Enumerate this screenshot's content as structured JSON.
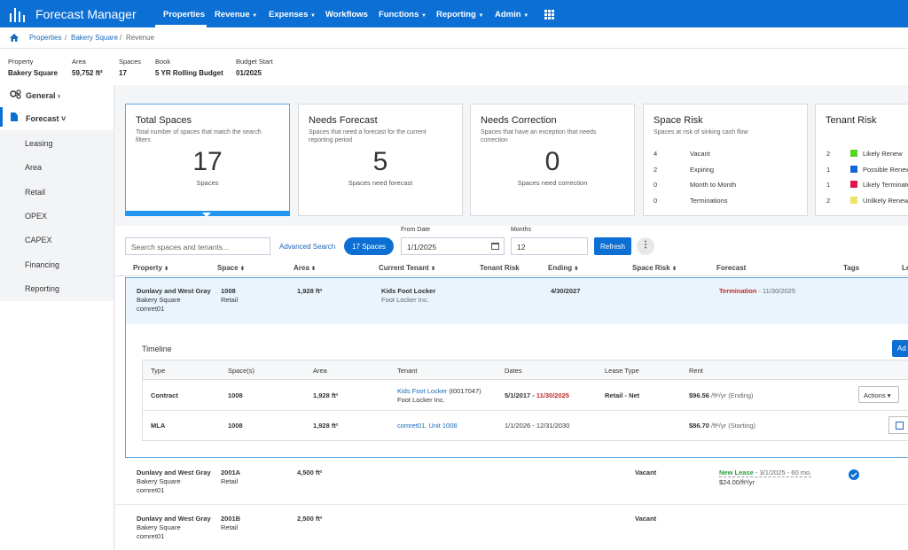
{
  "nav": {
    "title": "Forecast Manager",
    "menu": [
      "Properties",
      "Revenue",
      "Expenses",
      "Workflows",
      "Functions",
      "Reporting",
      "Admin"
    ]
  },
  "breadcrumb": [
    "Properties",
    "Bakery Square",
    "Revenue"
  ],
  "info": [
    {
      "label": "Property",
      "value": "Bakery Square"
    },
    {
      "label": "Area",
      "value": "59,752 ft²"
    },
    {
      "label": "Spaces",
      "value": "17"
    },
    {
      "label": "Book",
      "value": "5 YR Rolling Budget"
    },
    {
      "label": "Budget Start",
      "value": "01/2025"
    }
  ],
  "sidebar": {
    "sections": [
      "General",
      "Forecast"
    ],
    "items": [
      "Leasing",
      "Area",
      "Retail",
      "OPEX",
      "CAPEX",
      "Financing",
      "Reporting"
    ]
  },
  "cards": [
    {
      "title": "Total Spaces",
      "desc": "Total number of spaces that match the search filters",
      "number": "17",
      "caption": "Spaces"
    },
    {
      "title": "Needs Forecast",
      "desc": "Spaces that need a forecast for the current reporting period",
      "number": "5",
      "caption": "Spaces need forecast"
    },
    {
      "title": "Needs Correction",
      "desc": "Spaces that have an exception that needs correction",
      "number": "0",
      "caption": "Spaces need correction"
    }
  ],
  "space_risk": {
    "title": "Space Risk",
    "desc": "Spaces at risk of sinking cash flow",
    "rows": [
      [
        "4",
        "Vacant"
      ],
      [
        "2",
        "Expiring"
      ],
      [
        "0",
        "Month to Month"
      ],
      [
        "0",
        "Terminations"
      ]
    ]
  },
  "tenant_risk": {
    "title": "Tenant Risk",
    "rows": [
      [
        "2",
        "Likely Renew"
      ],
      [
        "1",
        "Possible Renew"
      ],
      [
        "1",
        "Likely Terminate"
      ],
      [
        "2",
        "Unlikely Renew"
      ]
    ]
  },
  "toolbar": {
    "search": "Search spaces and tenants...",
    "advanced": "Advanced Search",
    "count": "17 Spaces",
    "from_label": "From Date",
    "from": "1/1/2025",
    "months_label": "Months",
    "months": "12",
    "refresh": "Refresh"
  },
  "columns": [
    "Property",
    "Space",
    "Area",
    "Current Tenant",
    "Tenant Risk",
    "Ending",
    "Space Risk",
    "Forecast",
    "Tags",
    "Le"
  ],
  "rows": [
    {
      "property": "Dunlavy and West Gray",
      "site": "Bakery Square",
      "code": "comret01",
      "space": "1008",
      "use": "Retail",
      "area": "1,928 ft²",
      "tenant": "Kids Foot Locker",
      "company": "Foot Locker Inc.",
      "ending": "4/30/2027",
      "forecast": "Termination",
      "forecast_date": " - 11/30/2025"
    },
    {
      "property": "Dunlavy and West Gray",
      "site": "Bakery Square",
      "code": "comret01",
      "space": "2001A",
      "use": "Retail",
      "area": "4,500 ft²",
      "space_risk": "Vacant",
      "forecast": "New Lease",
      "forecast_date": " - 3/1/2025 - 60 mo.",
      "rent": "$24.00/ft²/yr"
    },
    {
      "property": "Dunlavy and West Gray",
      "site": "Bakery Square",
      "code": "comret01",
      "space": "2001B",
      "use": "Retail",
      "area": "2,500 ft²",
      "space_risk": "Vacant"
    }
  ],
  "timeline": {
    "title": "Timeline",
    "add": "Ad",
    "columns": [
      "Type",
      "Space(s)",
      "Area",
      "Tenant",
      "Dates",
      "Lease Type",
      "Rent"
    ],
    "rows": [
      {
        "type": "Contract",
        "space": "1008",
        "area": "1,928 ft²",
        "tenant": "Kids Foot Locker",
        "tenant_id": " (t0017047)",
        "company": "Foot Locker Inc.",
        "start": "5/1/2017 - ",
        "end": "11/30/2025",
        "lease_type": "Retail - Net",
        "rent": "$96.56",
        "rent_unit": " /ft²/yr (Ending)",
        "action": "Actions"
      },
      {
        "type": "MLA",
        "space": "1008",
        "area": "1,928 ft²",
        "tenant": "comret01, Unit 1008",
        "dates": "1/1/2026 - 12/31/2030",
        "rent": "$86.70",
        "rent_unit": " /ft²/yr (Starting)"
      }
    ]
  }
}
